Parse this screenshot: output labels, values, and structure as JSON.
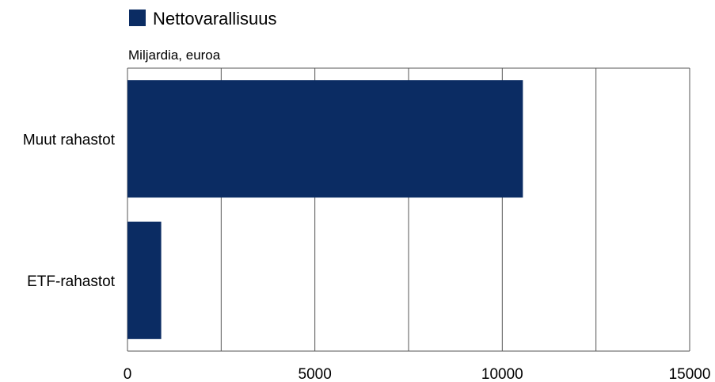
{
  "chart_data": {
    "type": "bar",
    "orientation": "horizontal",
    "categories": [
      "Muut rahastot",
      "ETF-rahastot"
    ],
    "series": [
      {
        "name": "Nettovarallisuus",
        "values": [
          10550,
          900
        ],
        "color": "#0b2c63"
      }
    ],
    "unit_label": "Miljardia, euroa",
    "xlim": [
      0,
      15000
    ],
    "x_ticks": [
      0,
      5000,
      10000,
      15000
    ],
    "gridlines": [
      0,
      2500,
      5000,
      7500,
      10000,
      12500,
      15000
    ],
    "grid": true,
    "legend_position": "top-left"
  }
}
